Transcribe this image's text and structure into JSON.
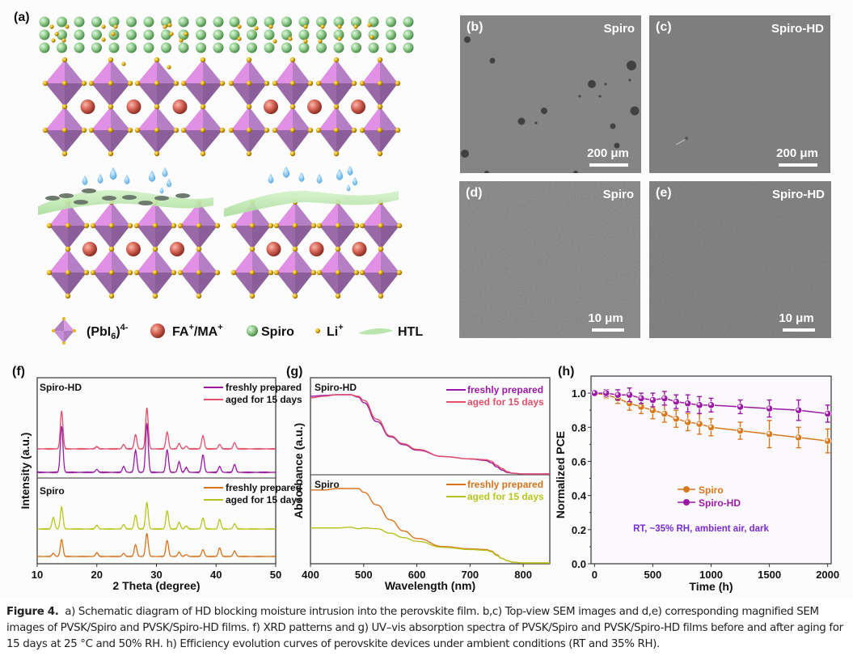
{
  "panels": {
    "a": {
      "label": "(a)",
      "legend": [
        {
          "symbol": "octahedron-icon",
          "text": "(PbI6)4-",
          "base": "(PbI",
          "sub": "6",
          "paren": ")",
          "sup": "4-"
        },
        {
          "symbol": "red-sphere-icon",
          "text": "FA+/MA+",
          "parts": [
            "FA",
            "+",
            "/MA",
            "+"
          ]
        },
        {
          "symbol": "green-sphere-icon",
          "text": "Spiro"
        },
        {
          "symbol": "small-gold-sphere-icon",
          "text": "Li+",
          "parts": [
            "Li",
            "+"
          ]
        },
        {
          "symbol": "htl-sheet-icon",
          "text": "HTL"
        }
      ],
      "colors": {
        "octahedron_light": "#e28fe6",
        "octahedron_dark": "#9a6aa8",
        "iodide": "#e8b410",
        "cation": "#d9675a",
        "spiro": "#8ecb8a",
        "htl": "#b9e6ad",
        "water": "#6fb8ea",
        "pinhole": "#6e7a6e"
      }
    },
    "b": {
      "label": "(b)",
      "tag": "Spiro",
      "scale": "200 μm"
    },
    "c": {
      "label": "(c)",
      "tag": "Spiro-HD",
      "scale": "200 μm"
    },
    "d": {
      "label": "(d)",
      "tag": "Spiro",
      "scale": "10 μm"
    },
    "e": {
      "label": "(e)",
      "tag": "Spiro-HD",
      "scale": "10 μm"
    },
    "f": {
      "label": "(f)"
    },
    "g": {
      "label": "(g)"
    },
    "h": {
      "label": "(h)"
    }
  },
  "chart_data": [
    {
      "id": "f",
      "type": "line",
      "title": "",
      "xlabel": "2 Theta (degree)",
      "ylabel": "Intensity (a.u.)",
      "xlim": [
        10,
        50
      ],
      "xticks": [
        10,
        20,
        30,
        40,
        50
      ],
      "group_labels": [
        "Spiro-HD",
        "Spiro"
      ],
      "peaks_2theta": [
        12.7,
        14.1,
        20.0,
        24.5,
        26.5,
        28.4,
        31.8,
        33.8,
        35.0,
        37.8,
        40.6,
        43.1
      ],
      "series": [
        {
          "group": "Spiro-HD",
          "name": "aged for 15 days",
          "color": "#e0506a",
          "heights": [
            0.0,
            0.85,
            0.05,
            0.1,
            0.32,
            0.92,
            0.38,
            0.12,
            0.06,
            0.3,
            0.1,
            0.14
          ]
        },
        {
          "group": "Spiro-HD",
          "name": "freshly prepared",
          "color": "#9a1aa6",
          "heights": [
            0.0,
            0.95,
            0.06,
            0.12,
            0.45,
            1.0,
            0.46,
            0.22,
            0.1,
            0.36,
            0.12,
            0.16
          ]
        },
        {
          "group": "Spiro",
          "name": "aged for 15 days",
          "color": "#b7c41e",
          "heights": [
            0.32,
            0.6,
            0.1,
            0.12,
            0.38,
            0.72,
            0.5,
            0.18,
            0.08,
            0.3,
            0.26,
            0.14
          ]
        },
        {
          "group": "Spiro",
          "name": "freshly prepared",
          "color": "#d8741e",
          "heights": [
            0.1,
            0.55,
            0.12,
            0.1,
            0.38,
            0.75,
            0.52,
            0.14,
            0.06,
            0.22,
            0.28,
            0.18
          ]
        }
      ],
      "legend": [
        {
          "group": "Spiro-HD",
          "entries": [
            {
              "name": "freshly prepared",
              "color": "#9a1aa6"
            },
            {
              "name": "aged for 15 days",
              "color": "#e0506a"
            }
          ]
        },
        {
          "group": "Spiro",
          "entries": [
            {
              "name": "freshly prepared",
              "color": "#d8741e"
            },
            {
              "name": "aged for 15 days",
              "color": "#b7c41e"
            }
          ]
        }
      ]
    },
    {
      "id": "g",
      "type": "line",
      "title": "",
      "xlabel": "Wavelength (nm)",
      "ylabel": "Absorbance (a.u.)",
      "xlim": [
        400,
        850
      ],
      "xticks": [
        400,
        500,
        600,
        700,
        800
      ],
      "group_labels": [
        "Spiro-HD",
        "Spiro"
      ],
      "x": [
        400,
        425,
        450,
        475,
        490,
        500,
        525,
        550,
        575,
        600,
        650,
        700,
        730,
        740,
        750,
        760,
        770,
        780,
        800,
        850
      ],
      "series": [
        {
          "group": "Spiro-HD",
          "name": "freshly prepared",
          "color": "#9a1aa6",
          "values": [
            0.98,
            0.99,
            1.0,
            1.0,
            0.97,
            0.9,
            0.66,
            0.47,
            0.37,
            0.3,
            0.22,
            0.19,
            0.17,
            0.14,
            0.09,
            0.05,
            0.02,
            0.01,
            0.0,
            0.0
          ]
        },
        {
          "group": "Spiro-HD",
          "name": "aged for 15 days",
          "color": "#e0506a",
          "values": [
            0.96,
            0.98,
            1.0,
            1.0,
            0.98,
            0.93,
            0.69,
            0.48,
            0.38,
            0.31,
            0.22,
            0.19,
            0.18,
            0.16,
            0.11,
            0.07,
            0.03,
            0.01,
            0.0,
            0.0
          ]
        },
        {
          "group": "Spiro",
          "name": "freshly prepared",
          "color": "#d8741e",
          "values": [
            0.98,
            0.98,
            1.0,
            1.0,
            1.0,
            0.95,
            0.78,
            0.58,
            0.43,
            0.33,
            0.22,
            0.19,
            0.18,
            0.16,
            0.11,
            0.06,
            0.03,
            0.01,
            0.0,
            0.0
          ]
        },
        {
          "group": "Spiro",
          "name": "aged for 15 days",
          "color": "#b7c41e",
          "values": [
            0.47,
            0.47,
            0.47,
            0.48,
            0.46,
            0.47,
            0.46,
            0.4,
            0.34,
            0.29,
            0.21,
            0.18,
            0.17,
            0.15,
            0.1,
            0.06,
            0.03,
            0.01,
            0.0,
            0.0
          ]
        }
      ],
      "legend": [
        {
          "group": "Spiro-HD",
          "entries": [
            {
              "name": "freshly prepared",
              "color": "#9a1aa6"
            },
            {
              "name": "aged for 15 days",
              "color": "#e0506a"
            }
          ]
        },
        {
          "group": "Spiro",
          "entries": [
            {
              "name": "freshly prepared",
              "color": "#d8741e"
            },
            {
              "name": "aged for 15 days",
              "color": "#b7c41e"
            }
          ]
        }
      ]
    },
    {
      "id": "h",
      "type": "line",
      "title": "",
      "xlabel": "Time (h)",
      "ylabel": "Normalized PCE",
      "xlim": [
        -30,
        2030
      ],
      "ylim": [
        0.0,
        1.1
      ],
      "xticks": [
        0,
        500,
        1000,
        1500,
        2000
      ],
      "yticks": [
        0.0,
        0.2,
        0.4,
        0.6,
        0.8,
        1.0
      ],
      "annotation": "RT, ~35% RH, ambient air, dark",
      "annotation_color": "#7a2ad6",
      "legend_position": "center-left",
      "x": [
        0,
        100,
        200,
        300,
        400,
        500,
        600,
        700,
        800,
        900,
        1000,
        1250,
        1500,
        1750,
        2000
      ],
      "series": [
        {
          "name": "Spiro",
          "color": "#d8781a",
          "values": [
            1.0,
            0.99,
            0.97,
            0.94,
            0.92,
            0.9,
            0.88,
            0.85,
            0.83,
            0.82,
            0.8,
            0.78,
            0.76,
            0.74,
            0.72
          ],
          "errors": [
            0.0,
            0.02,
            0.03,
            0.04,
            0.04,
            0.05,
            0.05,
            0.05,
            0.05,
            0.06,
            0.05,
            0.05,
            0.08,
            0.06,
            0.07
          ]
        },
        {
          "name": "Spiro-HD",
          "color": "#9a1aa6",
          "values": [
            1.0,
            1.0,
            0.99,
            0.99,
            0.97,
            0.96,
            0.97,
            0.95,
            0.94,
            0.93,
            0.93,
            0.92,
            0.91,
            0.9,
            0.88
          ],
          "errors": [
            0.0,
            0.02,
            0.03,
            0.04,
            0.03,
            0.04,
            0.04,
            0.04,
            0.05,
            0.05,
            0.04,
            0.04,
            0.05,
            0.06,
            0.05
          ]
        }
      ]
    }
  ],
  "caption": {
    "lead": "Figure 4.",
    "text": "a) Schematic diagram of HD blocking moisture intrusion into the perovskite film. b,c) Top-view SEM images and d,e) corresponding magnified SEM images of PVSK/Spiro and PVSK/Spiro-HD films. f) XRD patterns and g) UV–vis absorption spectra of PVSK/Spiro and PVSK/Spiro-HD films before and after aging for 15 days at 25 °C and 50% RH. h) Efficiency evolution curves of perovskite devices under ambient conditions (RT and 35% RH)."
  }
}
